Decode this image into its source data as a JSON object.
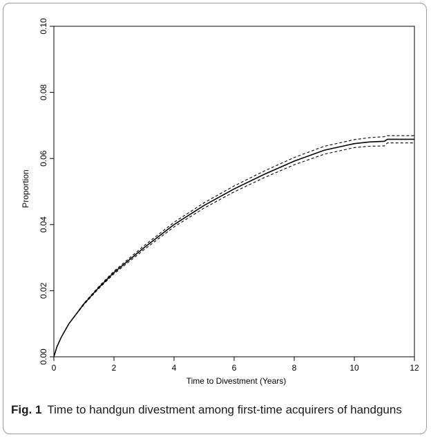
{
  "figure": {
    "label": "Fig. 1",
    "caption": "Time to handgun divestment among first-time acquirers of handguns"
  },
  "chart_data": {
    "type": "line",
    "title": "",
    "xlabel": "Time to Divestment (Years)",
    "ylabel": "Proportion",
    "xlim": [
      0,
      12
    ],
    "ylim": [
      0,
      0.1
    ],
    "xticks": [
      0,
      2,
      4,
      6,
      8,
      10,
      12
    ],
    "yticks": [
      0.0,
      0.02,
      0.04,
      0.06,
      0.08,
      0.1
    ],
    "ytick_labels": [
      "0.00",
      "0.02",
      "0.04",
      "0.06",
      "0.08",
      "0.10"
    ],
    "grid": false,
    "legend": "none",
    "series": [
      {
        "style": "solid",
        "x": [
          0,
          0.1,
          0.25,
          0.5,
          1,
          1.5,
          2,
          3,
          4,
          5,
          6,
          7,
          8,
          9,
          10,
          10.5,
          11,
          11.1,
          12
        ],
        "y": [
          0,
          0.003,
          0.006,
          0.01,
          0.016,
          0.021,
          0.0255,
          0.033,
          0.04,
          0.0458,
          0.0508,
          0.0552,
          0.0592,
          0.0625,
          0.0645,
          0.065,
          0.0652,
          0.0658,
          0.0658
        ]
      },
      {
        "style": "dashed",
        "x": [
          0,
          0.1,
          0.25,
          0.5,
          1,
          1.5,
          2,
          3,
          4,
          5,
          6,
          7,
          8,
          9,
          10,
          10.5,
          11,
          11.1,
          12
        ],
        "y": [
          0,
          0.003,
          0.006,
          0.01,
          0.0162,
          0.0213,
          0.0259,
          0.0336,
          0.0407,
          0.0466,
          0.0517,
          0.0562,
          0.0603,
          0.0637,
          0.0657,
          0.0663,
          0.0666,
          0.0669,
          0.0669
        ]
      },
      {
        "style": "dashed",
        "x": [
          0,
          0.1,
          0.25,
          0.5,
          1,
          1.5,
          2,
          3,
          4,
          5,
          6,
          7,
          8,
          9,
          10,
          10.5,
          11,
          11.1,
          12
        ],
        "y": [
          0,
          0.003,
          0.006,
          0.01,
          0.0158,
          0.0207,
          0.0251,
          0.0324,
          0.0393,
          0.045,
          0.0499,
          0.0542,
          0.0581,
          0.0613,
          0.0633,
          0.0637,
          0.0638,
          0.0647,
          0.0647
        ]
      }
    ]
  }
}
